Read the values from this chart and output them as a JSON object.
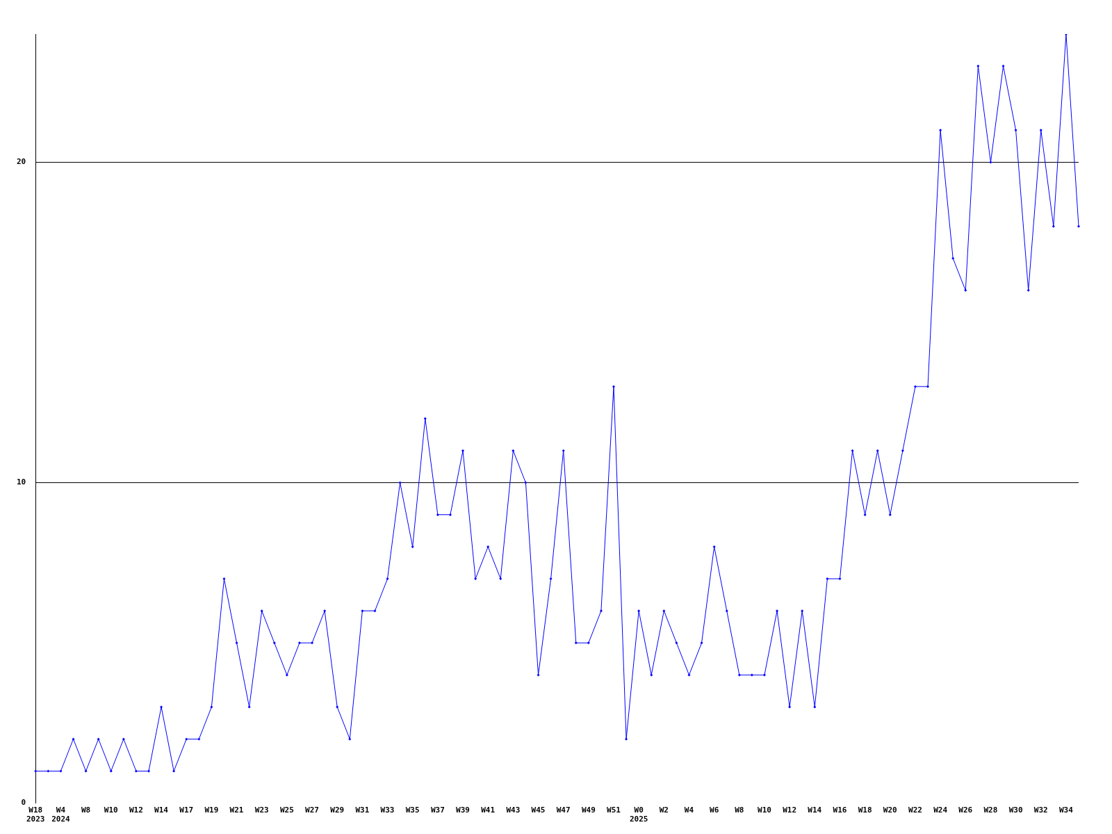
{
  "chart_data": {
    "type": "line",
    "categories": [
      "W18\n2023",
      null,
      "W4\n2024",
      null,
      "W8",
      null,
      "W10",
      null,
      "W12",
      null,
      "W14",
      null,
      "W17",
      null,
      "W19",
      null,
      "W21",
      null,
      "W23",
      null,
      "W25",
      null,
      "W27",
      null,
      "W29",
      null,
      "W31",
      null,
      "W33",
      null,
      "W35",
      null,
      "W37",
      null,
      "W39",
      null,
      "W41",
      null,
      "W43",
      null,
      "W45",
      null,
      "W47",
      null,
      "W49",
      null,
      "W51",
      null,
      "W0\n2025",
      null,
      "W2",
      null,
      "W4",
      null,
      "W6",
      null,
      "W8",
      null,
      "W10",
      null,
      "W12",
      null,
      "W14",
      null,
      "W16",
      null,
      "W18",
      null,
      "W20",
      null,
      "W22",
      null,
      "W24",
      null,
      "W26",
      null,
      "W28",
      null,
      "W30",
      null,
      "W32",
      null,
      "W34",
      null
    ],
    "series": [
      {
        "color": "#0000ff",
        "values": [
          1,
          1,
          1,
          2,
          1,
          2,
          1,
          2,
          1,
          1,
          3,
          1,
          2,
          2,
          3,
          7,
          5,
          3,
          6,
          5,
          4,
          5,
          5,
          6,
          3,
          2,
          6,
          6,
          7,
          10,
          8,
          12,
          9,
          9,
          11,
          7,
          8,
          7,
          11,
          10,
          4,
          7,
          11,
          5,
          5,
          6,
          13,
          2,
          6,
          4,
          6,
          5,
          4,
          5,
          8,
          6,
          4,
          4,
          4,
          6,
          3,
          6,
          3,
          7,
          7,
          11,
          9,
          11,
          9,
          11,
          13,
          13,
          21,
          17,
          16,
          23,
          20,
          23,
          21,
          16,
          21,
          18,
          24,
          18
        ]
      }
    ],
    "ylim": [
      0,
      24
    ],
    "yticks": [
      0,
      10,
      20
    ],
    "grid": "y",
    "legend": false,
    "marker": "diamond",
    "line_style": "solid"
  }
}
